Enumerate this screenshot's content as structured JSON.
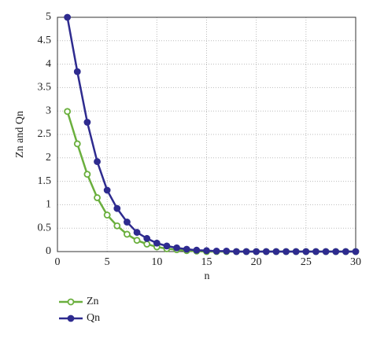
{
  "chart_data": {
    "type": "line",
    "xlabel": "n",
    "ylabel": "Zn and Qn",
    "x": [
      1,
      2,
      3,
      4,
      5,
      6,
      7,
      8,
      9,
      10,
      11,
      12,
      13,
      14,
      15,
      16,
      17,
      18,
      19,
      20,
      21,
      22,
      23,
      24,
      25,
      26,
      27,
      28,
      29,
      30
    ],
    "series": [
      {
        "name": "Zn",
        "color": "#6aaf3d",
        "marker": "open",
        "values": [
          2.99,
          2.3,
          1.65,
          1.15,
          0.78,
          0.55,
          0.37,
          0.24,
          0.16,
          0.1,
          0.06,
          0.04,
          0.02,
          0.01,
          0,
          0,
          0,
          0,
          0,
          0,
          0,
          0,
          0,
          0,
          0,
          0,
          0,
          0,
          0,
          0
        ]
      },
      {
        "name": "Qn",
        "color": "#2e2b8f",
        "marker": "filled",
        "values": [
          5,
          3.84,
          2.76,
          1.92,
          1.31,
          0.92,
          0.63,
          0.41,
          0.28,
          0.18,
          0.12,
          0.08,
          0.05,
          0.03,
          0.02,
          0.01,
          0.01,
          0,
          0,
          0,
          0,
          0,
          0,
          0,
          0,
          0,
          0,
          0,
          0,
          0
        ]
      }
    ],
    "xlim": [
      0,
      30
    ],
    "xticks": [
      0,
      5,
      10,
      15,
      20,
      25,
      30
    ],
    "ylim": [
      0,
      5
    ],
    "yticks": [
      0,
      0.5,
      1,
      1.5,
      2,
      2.5,
      3,
      3.5,
      4,
      4.5,
      5
    ],
    "grid": true,
    "legend": "bottom-left"
  }
}
